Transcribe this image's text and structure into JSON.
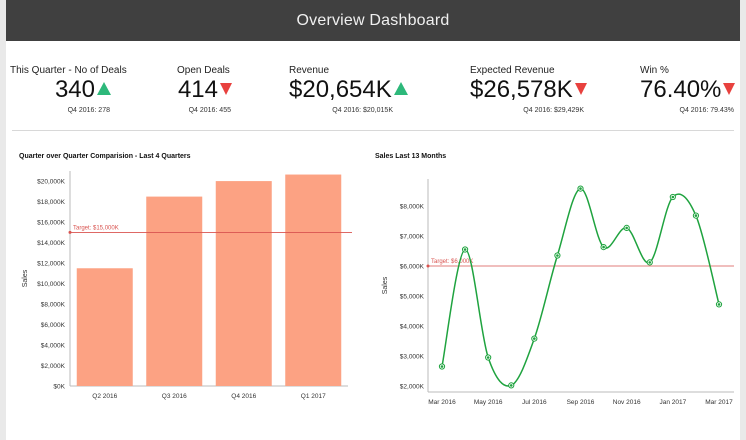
{
  "header": {
    "title": "Overview Dashboard"
  },
  "kpis": [
    {
      "label": "This Quarter - No of Deals",
      "value": "340",
      "trend": "up",
      "sub": "Q4 2016: 278"
    },
    {
      "label": "Open Deals",
      "value": "414",
      "trend": "down",
      "sub": "Q4 2016: 455"
    },
    {
      "label": "Revenue",
      "value": "$20,654K",
      "trend": "up",
      "sub": "Q4 2016: $20,015K"
    },
    {
      "label": "Expected Revenue",
      "value": "$26,578K",
      "trend": "down",
      "sub": "Q4 2016: $29,429K"
    },
    {
      "label": "Win %",
      "value": "76.40%",
      "trend": "down",
      "sub": "Q4 2016: 79.43%"
    }
  ],
  "colors": {
    "up": "#2db87a",
    "down": "#e8413e",
    "bar": "#fca283",
    "line": "#1fa33f",
    "target": "#d9534f"
  },
  "chart_data": [
    {
      "type": "bar",
      "title": "Quarter over Quarter Comparision - Last 4 Quarters",
      "categories": [
        "Q2 2016",
        "Q3 2016",
        "Q4 2016",
        "Q1 2017"
      ],
      "values": [
        11500,
        18500,
        20015,
        20654
      ],
      "ylabel": "Sales",
      "ylim": [
        0,
        21000
      ],
      "yticks": [
        0,
        2000,
        4000,
        6000,
        8000,
        10000,
        12000,
        14000,
        16000,
        18000,
        20000
      ],
      "ytick_labels": [
        "$0K",
        "$2,000K",
        "$4,000K",
        "$6,000K",
        "$8,000K",
        "$10,000K",
        "$12,000K",
        "$14,000K",
        "$16,000K",
        "$18,000K",
        "$20,000K"
      ],
      "target": {
        "value": 15000,
        "label": "Target: $15,000K"
      },
      "grid": false
    },
    {
      "type": "line",
      "title": "Sales Last 13 Months",
      "x": [
        "Mar 2016",
        "Apr 2016",
        "May 2016",
        "Jun 2016",
        "Jul 2016",
        "Aug 2016",
        "Sep 2016",
        "Oct 2016",
        "Nov 2016",
        "Dec 2016",
        "Jan 2017",
        "Feb 2017",
        "Mar 2017"
      ],
      "xtick_labels": [
        "Mar 2016",
        "May 2016",
        "Jul 2016",
        "Sep 2016",
        "Nov 2016",
        "Jan 2017",
        "Mar 2017"
      ],
      "values": [
        2650,
        6550,
        2950,
        2020,
        3580,
        6350,
        8580,
        6630,
        7270,
        6120,
        8300,
        7680,
        4720
      ],
      "ylabel": "Sales",
      "ylim": [
        1800,
        8900
      ],
      "yticks": [
        2000,
        3000,
        4000,
        5000,
        6000,
        7000,
        8000
      ],
      "ytick_labels": [
        "$2,000K",
        "$3,000K",
        "$4,000K",
        "$5,000K",
        "$6,000K",
        "$7,000K",
        "$8,000K"
      ],
      "target": {
        "value": 6000,
        "label": "Target: $6,000K"
      },
      "grid": false
    }
  ]
}
